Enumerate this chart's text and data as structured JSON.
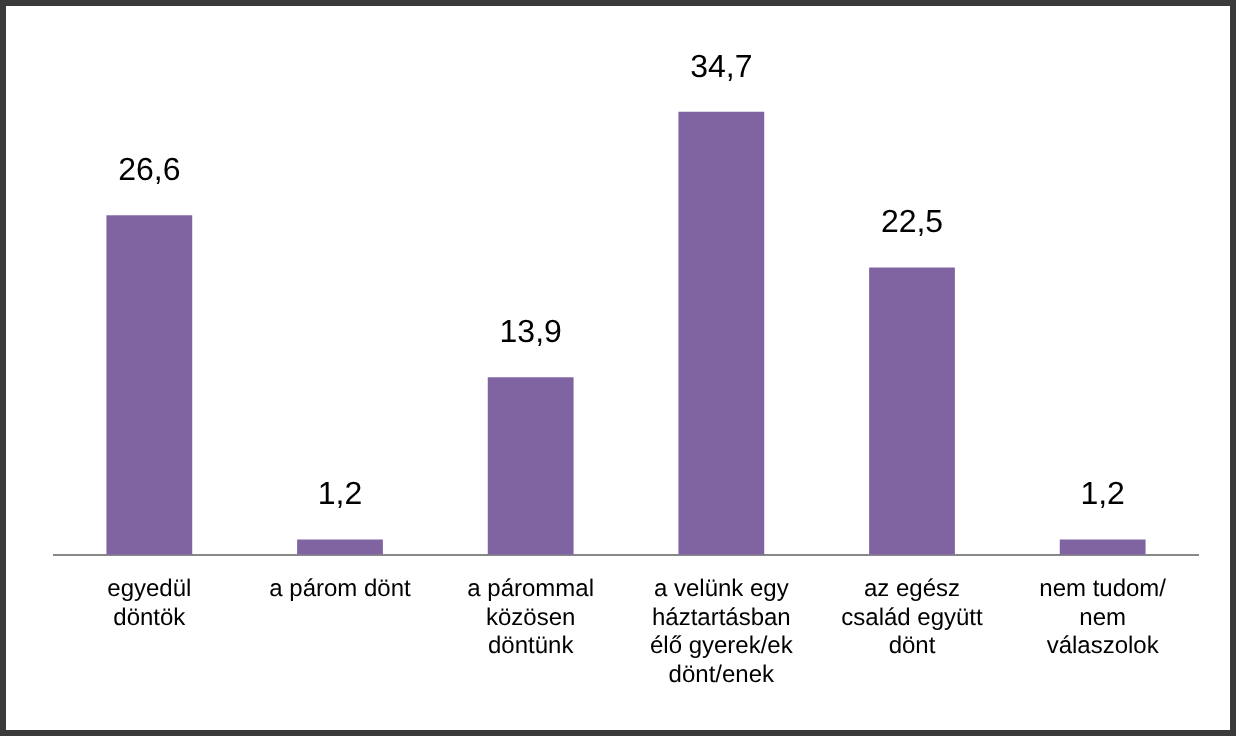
{
  "chart_data": {
    "type": "bar",
    "categories": [
      "egyedül döntök",
      "a párom dönt",
      "a párommal közösen döntünk",
      "a velünk egy háztartásban élő gyerek/ek dönt/enek",
      "az egész család együtt dönt",
      "nem tudom/ nem válaszolok"
    ],
    "values": [
      26.6,
      1.2,
      13.9,
      34.7,
      22.5,
      1.2
    ],
    "value_labels": [
      "26,6",
      "1,2",
      "13,9",
      "34,7",
      "22,5",
      "1,2"
    ],
    "color": "#8064a2",
    "relative": false,
    "grid": false,
    "legend": false
  }
}
